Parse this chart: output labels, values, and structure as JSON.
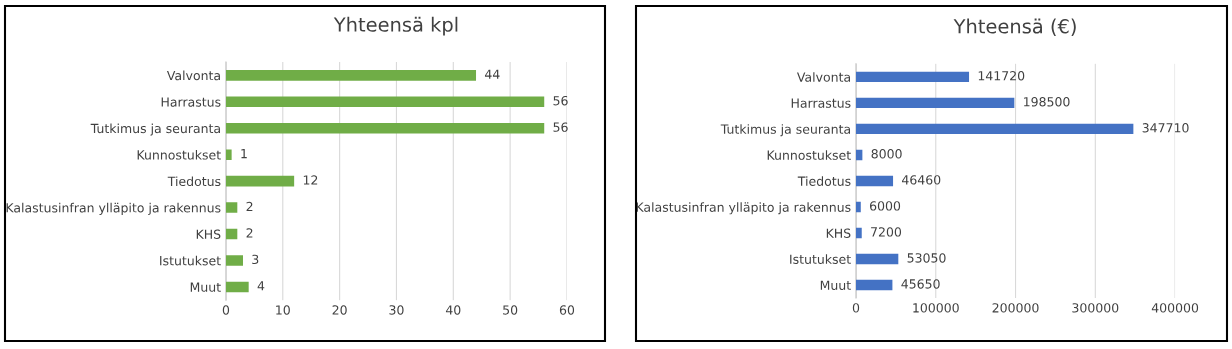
{
  "chart_data": [
    {
      "type": "bar",
      "orientation": "horizontal",
      "title": "Yhteensä kpl",
      "categories": [
        "Valvonta",
        "Harrastus",
        "Tutkimus ja seuranta",
        "Kunnostukset",
        "Tiedotus",
        "Kalastusinfran ylläpito ja rakennus",
        "KHS",
        "Istutukset",
        "Muut"
      ],
      "values": [
        44,
        56,
        56,
        1,
        12,
        2,
        2,
        3,
        4
      ],
      "color": "#70ad47",
      "xlim": [
        0,
        60
      ],
      "xticks": [
        0,
        10,
        20,
        30,
        40,
        50,
        60
      ],
      "grid": "x",
      "data_labels": true
    },
    {
      "type": "bar",
      "orientation": "horizontal",
      "title": "Yhteensä (€)",
      "categories": [
        "Valvonta",
        "Harrastus",
        "Tutkimus ja seuranta",
        "Kunnostukset",
        "Tiedotus",
        "Kalastusinfran ylläpito ja rakennus",
        "KHS",
        "Istutukset",
        "Muut"
      ],
      "values": [
        141720,
        198500,
        347710,
        8000,
        46460,
        6000,
        7200,
        53050,
        45650
      ],
      "color": "#4472c4",
      "xlim": [
        0,
        400000
      ],
      "xticks": [
        0,
        100000,
        200000,
        300000,
        400000
      ],
      "grid": "x",
      "data_labels": true
    }
  ]
}
